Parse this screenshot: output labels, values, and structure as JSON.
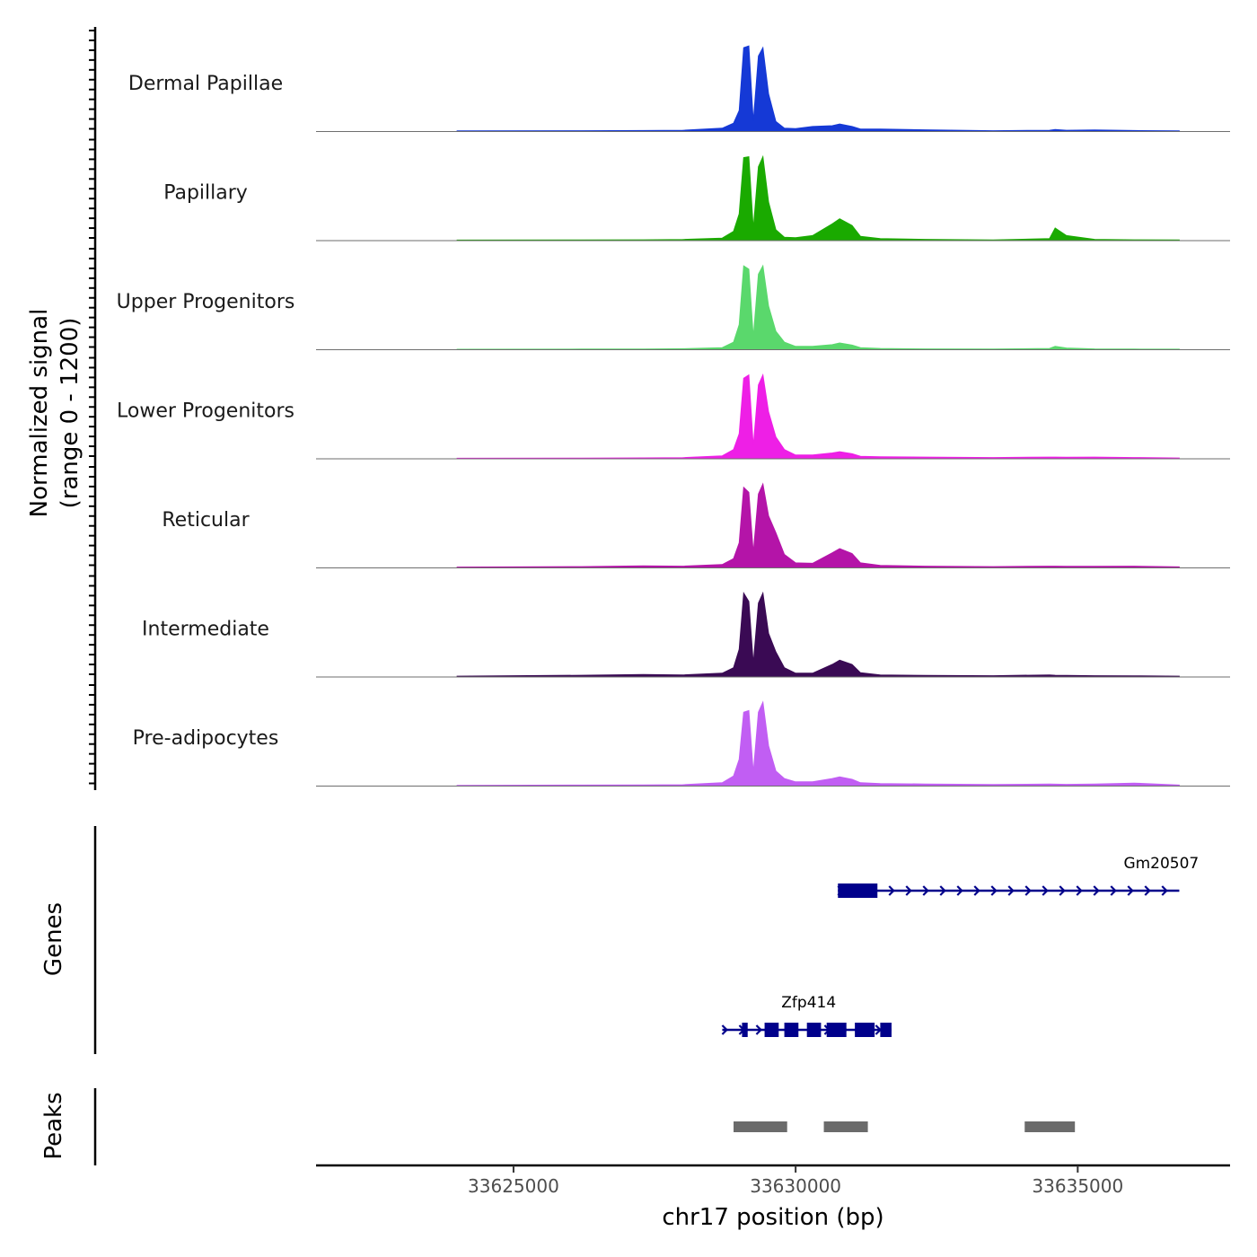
{
  "chart_data": {
    "type": "area",
    "chromosome": "chr17",
    "xlabel": "chr17 position (bp)",
    "ylabel_line1": "Normalized signal",
    "ylabel_line2": "(range 0 - 1200)",
    "ylim": [
      0,
      1200
    ],
    "xlim": [
      33621500,
      33637700
    ],
    "x_ticks": [
      {
        "value": 33625000,
        "label": "33625000"
      },
      {
        "value": 33630000,
        "label": "33630000"
      },
      {
        "value": 33635000,
        "label": "33635000"
      }
    ],
    "profile_positions": [
      33624000,
      33626200,
      33627300,
      33628000,
      33628700,
      33628900,
      33629000,
      33629080,
      33629170,
      33629250,
      33629340,
      33629420,
      33629520,
      33629650,
      33629800,
      33630000,
      33630300,
      33630650,
      33630780,
      33631000,
      33631150,
      33631500,
      33632300,
      33633500,
      33634500,
      33634600,
      33634800,
      33635300,
      33636000,
      33636800
    ],
    "tracks": [
      {
        "name": "Dermal Papillae",
        "color": "#1539d6",
        "values": [
          8,
          10,
          12,
          15,
          40,
          100,
          250,
          1000,
          1020,
          120,
          900,
          1000,
          450,
          120,
          40,
          35,
          60,
          70,
          90,
          60,
          30,
          30,
          20,
          10,
          15,
          25,
          15,
          18,
          12,
          8
        ]
      },
      {
        "name": "Papillary",
        "color": "#1aaa00",
        "values": [
          6,
          8,
          10,
          14,
          30,
          110,
          320,
          990,
          1000,
          140,
          880,
          1000,
          460,
          130,
          40,
          35,
          60,
          200,
          260,
          180,
          50,
          25,
          15,
          8,
          25,
          150,
          60,
          15,
          10,
          8
        ]
      },
      {
        "name": "Upper Progenitors",
        "color": "#5ad86c",
        "values": [
          5,
          7,
          9,
          12,
          25,
          90,
          300,
          1000,
          960,
          150,
          900,
          1000,
          520,
          220,
          90,
          40,
          40,
          60,
          80,
          55,
          25,
          15,
          10,
          8,
          15,
          40,
          20,
          10,
          8,
          6
        ]
      },
      {
        "name": "Lower Progenitors",
        "color": "#ee1fe6",
        "values": [
          6,
          9,
          11,
          14,
          35,
          110,
          300,
          960,
          1000,
          150,
          880,
          1000,
          560,
          260,
          110,
          45,
          45,
          70,
          85,
          60,
          30,
          25,
          20,
          15,
          20,
          20,
          18,
          20,
          15,
          10
        ]
      },
      {
        "name": "Reticular",
        "color": "#b414a8",
        "values": [
          10,
          15,
          25,
          20,
          40,
          110,
          300,
          960,
          900,
          180,
          880,
          1000,
          620,
          420,
          160,
          60,
          55,
          180,
          230,
          170,
          60,
          30,
          20,
          15,
          20,
          20,
          18,
          18,
          20,
          12
        ]
      },
      {
        "name": "Intermediate",
        "color": "#3a0a54",
        "values": [
          10,
          20,
          30,
          25,
          45,
          110,
          330,
          1000,
          900,
          160,
          880,
          1000,
          520,
          300,
          110,
          45,
          45,
          150,
          200,
          150,
          50,
          25,
          18,
          15,
          25,
          20,
          18,
          15,
          14,
          10
        ]
      },
      {
        "name": "Pre-adipocytes",
        "color": "#c15ef3",
        "values": [
          8,
          12,
          14,
          16,
          40,
          120,
          320,
          880,
          900,
          160,
          880,
          1000,
          480,
          180,
          90,
          50,
          50,
          90,
          110,
          80,
          40,
          30,
          25,
          18,
          25,
          22,
          20,
          25,
          35,
          12
        ]
      }
    ],
    "genes_title": "Genes",
    "genes": [
      {
        "name": "Gm20507",
        "start": 33630750,
        "end": 33636800,
        "strand": "+",
        "color": "#00008b",
        "exons": [
          [
            33630750,
            33631450
          ]
        ]
      },
      {
        "name": "Zfp414",
        "start": 33628700,
        "end": 33631700,
        "strand": "+",
        "color": "#00008b",
        "exons": [
          [
            33629050,
            33629150
          ],
          [
            33629450,
            33629700
          ],
          [
            33629800,
            33630050
          ],
          [
            33630200,
            33630450
          ],
          [
            33630550,
            33630900
          ],
          [
            33631050,
            33631400
          ],
          [
            33631500,
            33631700
          ]
        ]
      }
    ],
    "peaks_title": "Peaks",
    "peaks": [
      {
        "start": 33628900,
        "end": 33629850
      },
      {
        "start": 33630500,
        "end": 33631280
      },
      {
        "start": 33634060,
        "end": 33634950
      }
    ],
    "peak_color": "#6b6b6b"
  }
}
